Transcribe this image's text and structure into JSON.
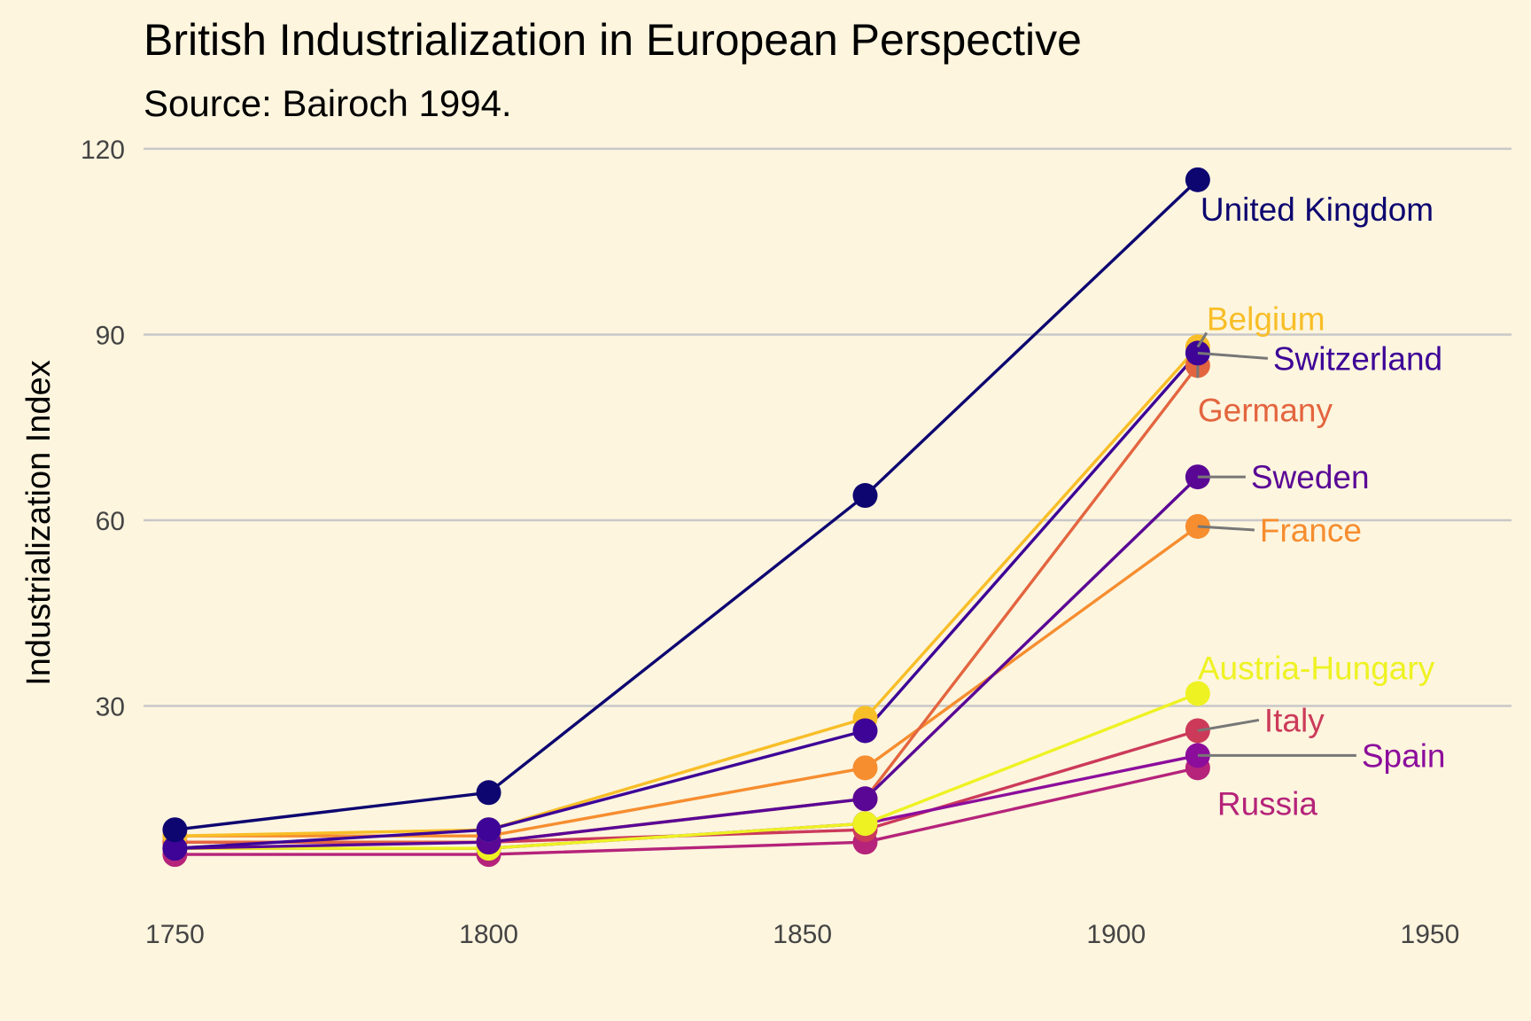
{
  "chart_data": {
    "type": "line",
    "title": "British Industrialization in European Perspective",
    "subtitle": "Source: Bairoch 1994.",
    "xlabel": "",
    "ylabel": "Industrialization Index",
    "xlim": [
      1745,
      1963
    ],
    "ylim": [
      -3,
      124
    ],
    "x_ticks": [
      1750,
      1800,
      1850,
      1900,
      1950
    ],
    "y_ticks": [
      30,
      60,
      90,
      120
    ],
    "grid": "horizontal",
    "legend": "direct labels",
    "x": [
      1750,
      1800,
      1860,
      1913
    ],
    "series": [
      {
        "name": "Russia",
        "color": "#b5237a",
        "values": [
          6,
          6,
          8,
          20
        ]
      },
      {
        "name": "Italy",
        "color": "#cc3a5a",
        "values": [
          8,
          8,
          10,
          26
        ]
      },
      {
        "name": "Spain",
        "color": "#8c0d9c",
        "values": [
          7,
          7,
          11,
          22
        ]
      },
      {
        "name": "Austria-Hungary",
        "color": "#eef222",
        "values": [
          7,
          7,
          11,
          32
        ]
      },
      {
        "name": "France",
        "color": "#f68d2f",
        "values": [
          9,
          9,
          20,
          59
        ]
      },
      {
        "name": "Germany",
        "color": "#e3653f",
        "values": [
          8,
          8,
          15,
          85
        ]
      },
      {
        "name": "Sweden",
        "color": "#5a0796",
        "values": [
          7,
          8,
          15,
          67
        ]
      },
      {
        "name": "Belgium",
        "color": "#f8be27",
        "values": [
          9,
          10,
          28,
          88
        ]
      },
      {
        "name": "Switzerland",
        "color": "#3d0497",
        "values": [
          7,
          10,
          26,
          87
        ]
      },
      {
        "name": "United Kingdom",
        "color": "#0d0570",
        "values": [
          10,
          16,
          64,
          115
        ]
      }
    ]
  }
}
